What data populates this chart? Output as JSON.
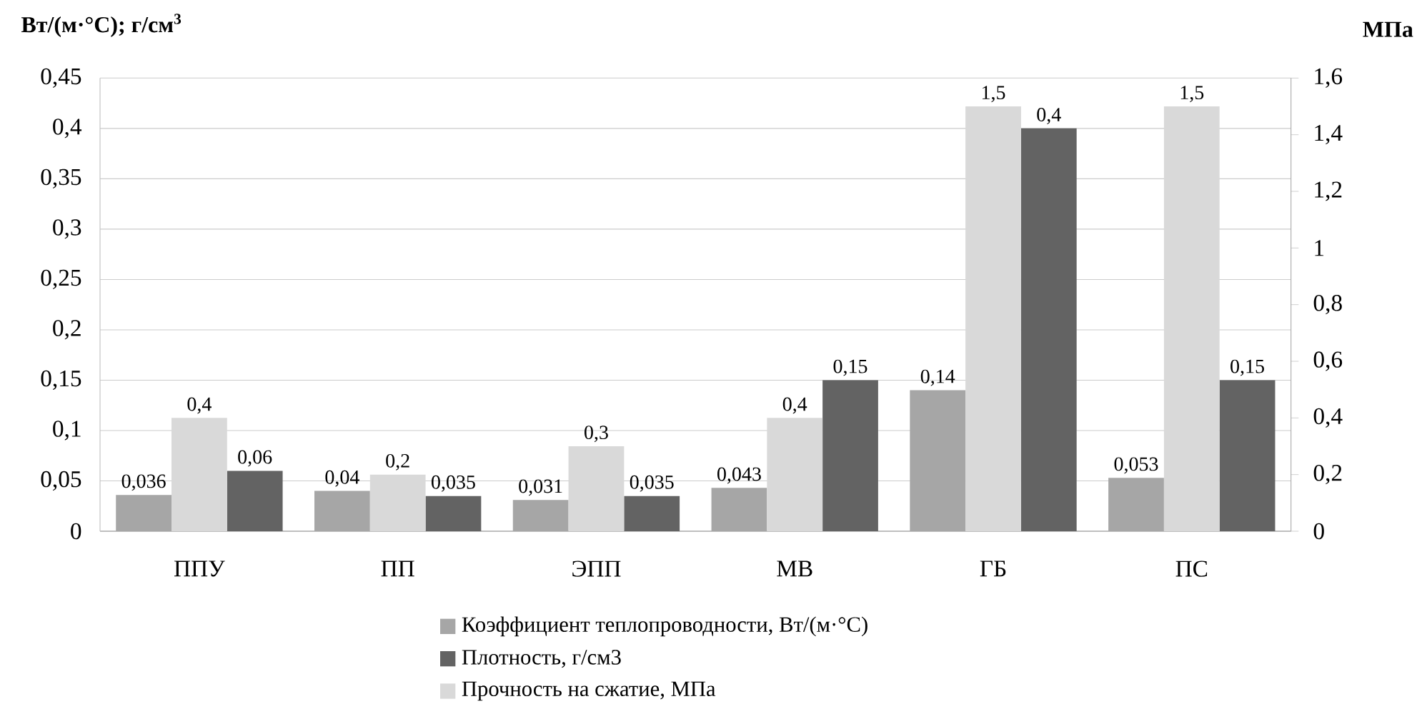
{
  "chart_data": {
    "type": "bar",
    "ylabel": "Вт/(м·°С); г/см$^{3}$",
    "y2label": "МПа",
    "categories": [
      "ППУ",
      "ПП",
      "ЭПП",
      "МВ",
      "ГБ",
      "ПС"
    ],
    "series": [
      {
        "name": "Коэффициент теплопроводности, Вт/(м·°С)",
        "color": "#a6a6a6",
        "values": [
          0.036,
          0.04,
          0.031,
          0.043,
          0.14,
          0.053
        ],
        "value_labels": [
          "0,036",
          "0,04",
          "0,031",
          "0,043",
          "0,14",
          "0,053"
        ]
      },
      {
        "name": "Плотность, г/см3",
        "color": "#636363",
        "values": [
          0.06,
          0.035,
          0.035,
          0.15,
          0.4,
          0.15
        ],
        "value_labels": [
          "0,06",
          "0,035",
          "0,035",
          "0,15",
          "0,4",
          "0,15"
        ]
      },
      {
        "name": "Прочность на сжатие, МПа",
        "color": "#d9d9d9",
        "axis": "y2",
        "values": [
          0.4,
          0.2,
          0.3,
          0.4,
          1.5,
          1.5
        ],
        "value_labels": [
          "0,4",
          "0,2",
          "0,3",
          "0,4",
          "1,5",
          "1,5"
        ]
      }
    ],
    "ylim": [
      0,
      0.45
    ],
    "yticks": [
      0,
      {
        "value": 0.05,
        "label": "0,05"
      },
      {
        "value": 0.1,
        "label": "0,1"
      },
      {
        "value": 0.15,
        "label": "0,15"
      },
      {
        "value": 0.2,
        "label": "0,2"
      },
      {
        "value": 0.25,
        "label": "0,25"
      },
      {
        "value": 0.3,
        "label": "0,3"
      },
      {
        "value": 0.35,
        "label": "0,35"
      },
      {
        "value": 0.4,
        "label": "0,4"
      },
      {
        "value": 0.45,
        "label": "0,45"
      }
    ],
    "y2lim": [
      0,
      1.6
    ],
    "y2ticks": [
      0,
      {
        "value": 0.2,
        "label": "0,2"
      },
      {
        "value": 0.4,
        "label": "0,4"
      },
      {
        "value": 0.6,
        "label": "0,6"
      },
      {
        "value": 0.8,
        "label": "0,8"
      },
      1,
      {
        "value": 1.2,
        "label": "1,2"
      },
      {
        "value": 1.4,
        "label": "1,4"
      },
      {
        "value": 1.6,
        "label": "1,6"
      }
    ],
    "grid": "y",
    "legend": "bottom"
  }
}
